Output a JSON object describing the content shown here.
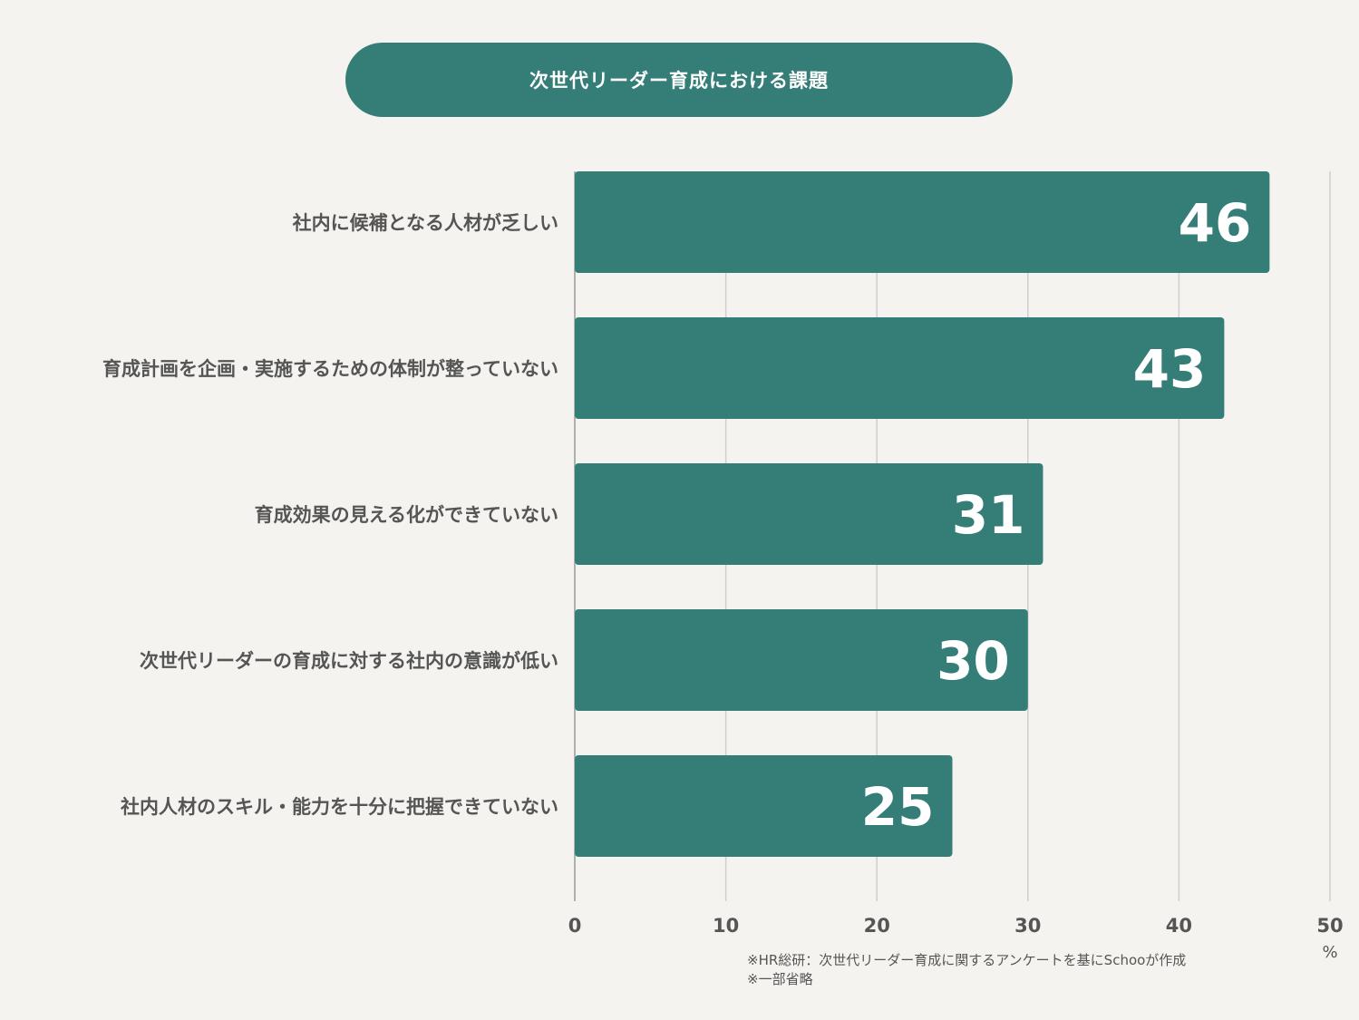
{
  "chart_data": {
    "type": "bar",
    "orientation": "horizontal",
    "title": "次世代リーダー育成における課題",
    "categories": [
      "社内に候補となる人材が乏しい",
      "育成計画を企画・実施するための体制が整っていない",
      "育成効果の見える化ができていない",
      "次世代リーダーの育成に対する社内の意識が低い",
      "社内人材のスキル・能力を十分に把握できていない"
    ],
    "values": [
      46,
      43,
      31,
      30,
      25
    ],
    "data_labels": [
      "46",
      "43",
      "31",
      "30",
      "25"
    ],
    "xlim": [
      0,
      50
    ],
    "xticks": [
      0,
      10,
      20,
      30,
      40,
      50
    ],
    "xtick_labels": [
      "0",
      "10",
      "20",
      "30",
      "40",
      "50"
    ],
    "unit_label": "%",
    "grid": "vertical",
    "bar_color": "#357e78",
    "grid_color": "#cfcfcf"
  },
  "notes": [
    "※HR総研：次世代リーダー育成に関するアンケートを基にSchooが作成",
    "※一部省略"
  ]
}
